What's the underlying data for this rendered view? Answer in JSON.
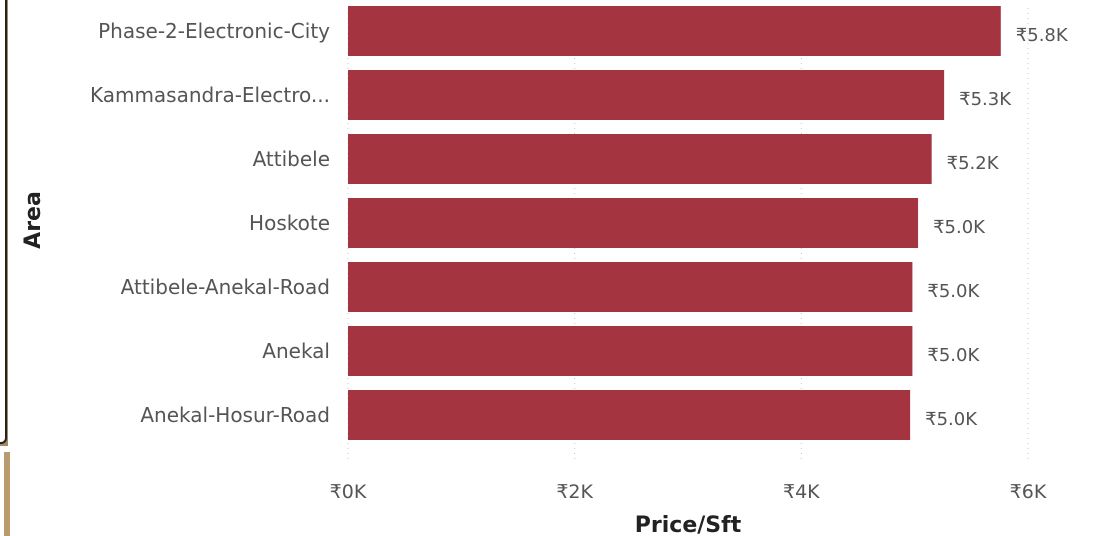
{
  "chart_data": {
    "type": "bar",
    "orientation": "horizontal",
    "categories": [
      "Phase-2-Electronic-City",
      "Kammasandra-Electro...",
      "Attibele",
      "Hoskote",
      "Attibele-Anekal-Road",
      "Anekal",
      "Anekal-Hosur-Road"
    ],
    "values": [
      5760,
      5260,
      5150,
      5030,
      4980,
      4980,
      4960
    ],
    "data_labels": [
      "₹5.8K",
      "₹5.3K",
      "₹5.2K",
      "₹5.0K",
      "₹5.0K",
      "₹5.0K",
      "₹5.0K"
    ],
    "xlabel": "Price/Sft",
    "ylabel": "Area",
    "xlim": [
      0,
      6000
    ],
    "x_ticks": [
      0,
      2000,
      4000,
      6000
    ],
    "x_tick_labels": [
      "₹0K",
      "₹2K",
      "₹4K",
      "₹6K"
    ],
    "grid": "vertical dotted",
    "bar_color": "#a4343f"
  }
}
